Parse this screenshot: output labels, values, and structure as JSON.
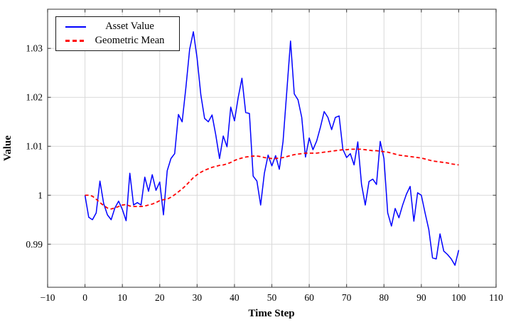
{
  "chart_data": {
    "type": "line",
    "title": "",
    "xlabel": "Time Step",
    "ylabel": "Value",
    "xlim": [
      -10,
      110
    ],
    "ylim": [
      0.9812,
      1.038
    ],
    "x_ticks": [
      -10,
      0,
      10,
      20,
      30,
      40,
      50,
      60,
      70,
      80,
      90,
      100,
      110
    ],
    "x_tick_labels": [
      "−10",
      "0",
      "10",
      "20",
      "30",
      "40",
      "50",
      "60",
      "70",
      "80",
      "90",
      "100",
      "110"
    ],
    "y_ticks": [
      0.99,
      1,
      1.01,
      1.02,
      1.03
    ],
    "y_tick_labels": [
      "0.99",
      "1",
      "1.01",
      "1.02",
      "1.03"
    ],
    "grid": "on",
    "legend_position": "top-left",
    "x_start": 0,
    "x_step": 1,
    "series": [
      {
        "name": "Asset Value",
        "color": "#0000ff",
        "style": "solid",
        "values": [
          1.0,
          0.9955,
          0.995,
          0.9964,
          1.0029,
          0.9983,
          0.996,
          0.995,
          0.9974,
          0.9988,
          0.9971,
          0.9948,
          1.0045,
          0.998,
          0.9985,
          0.998,
          1.0037,
          1.0008,
          1.0042,
          1.001,
          1.0027,
          0.996,
          1.005,
          1.0075,
          1.0085,
          1.0165,
          1.015,
          1.022,
          1.0298,
          1.0334,
          1.028,
          1.0205,
          1.0157,
          1.015,
          1.0164,
          1.0123,
          1.0075,
          1.0121,
          1.0099,
          1.018,
          1.0152,
          1.02,
          1.0239,
          1.0169,
          1.0167,
          1.0039,
          1.0029,
          0.998,
          1.0045,
          1.0082,
          1.006,
          1.0081,
          1.0053,
          1.011,
          1.0212,
          1.0315,
          1.0207,
          1.0195,
          1.0159,
          1.0078,
          1.0117,
          1.0093,
          1.0111,
          1.0139,
          1.0171,
          1.0159,
          1.0134,
          1.0159,
          1.0162,
          1.0094,
          1.0077,
          1.0085,
          1.0062,
          1.0109,
          1.0022,
          0.998,
          1.0028,
          1.0033,
          1.0022,
          1.011,
          1.0075,
          0.9964,
          0.9937,
          0.9973,
          0.9954,
          0.998,
          1.0002,
          1.0018,
          0.9947,
          1.0005,
          1.0,
          0.9964,
          0.993,
          0.9872,
          0.987,
          0.9921,
          0.9886,
          0.9879,
          0.987,
          0.9857,
          0.9888
        ]
      },
      {
        "name": "Geometric Mean",
        "color": "#ff0000",
        "style": "dashed",
        "values": [
          1.0,
          1.0,
          0.9998,
          0.9992,
          0.9985,
          0.9979,
          0.9974,
          0.9972,
          0.9974,
          0.9977,
          0.998,
          0.9981,
          0.9978,
          0.9977,
          0.9977,
          0.9977,
          0.9978,
          0.998,
          0.9982,
          0.9985,
          0.9989,
          0.9991,
          0.9992,
          0.9996,
          1.0001,
          1.0007,
          1.0013,
          1.002,
          1.0028,
          1.0036,
          1.0042,
          1.0047,
          1.0051,
          1.0054,
          1.0057,
          1.0059,
          1.0061,
          1.0062,
          1.0064,
          1.0067,
          1.0071,
          1.0074,
          1.0076,
          1.0078,
          1.0079,
          1.008,
          1.008,
          1.0079,
          1.0077,
          1.0076,
          1.0075,
          1.0075,
          1.0076,
          1.0077,
          1.0079,
          1.0081,
          1.0083,
          1.0084,
          1.0085,
          1.0086,
          1.0086,
          1.0086,
          1.0086,
          1.0087,
          1.0088,
          1.0089,
          1.009,
          1.0091,
          1.0092,
          1.0093,
          1.0093,
          1.0094,
          1.0094,
          1.0094,
          1.0094,
          1.0093,
          1.0092,
          1.0091,
          1.0091,
          1.009,
          1.0089,
          1.0088,
          1.0086,
          1.0084,
          1.0082,
          1.0081,
          1.008,
          1.0079,
          1.0078,
          1.0077,
          1.0076,
          1.0074,
          1.0072,
          1.007,
          1.0069,
          1.0068,
          1.0067,
          1.0066,
          1.0064,
          1.0063,
          1.0062
        ]
      }
    ]
  },
  "style": {
    "background": "#ffffff",
    "grid_color": "#d9d9d9",
    "axis_color": "#555555",
    "tick_color": "#444444",
    "legend_border_color": "#1a1a1a",
    "text_color": "#000000"
  }
}
